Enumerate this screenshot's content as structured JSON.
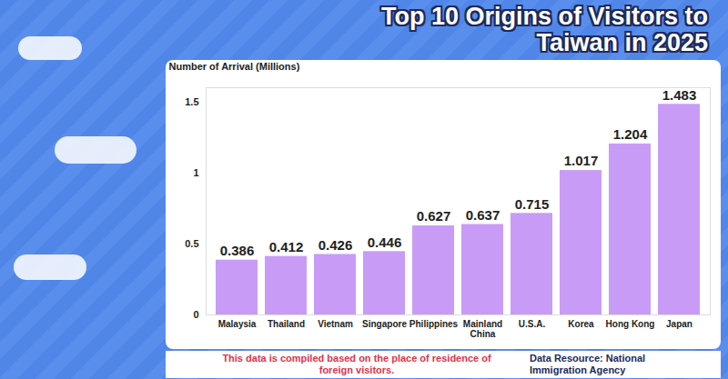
{
  "chart_data": {
    "type": "bar",
    "title": "Top 10 Origins of Visitors to Taiwan in 2025",
    "y_label": "Number of Arrival (Millions)",
    "categories": [
      "Malaysia",
      "Thailand",
      "Vietnam",
      "Singapore",
      "Philippines",
      "Mainland China",
      "U.S.A.",
      "Korea",
      "Hong Kong",
      "Japan"
    ],
    "values": [
      0.386,
      0.412,
      0.426,
      0.446,
      0.627,
      0.637,
      0.715,
      1.017,
      1.204,
      1.483
    ],
    "color": "#c89cf6",
    "ylim": [
      0,
      1.6
    ],
    "yticks": [
      0,
      0.5,
      1,
      1.5
    ],
    "grid": false,
    "data_labels": true,
    "note": "This data is compiled based on the place of residence of foreign visitors.",
    "source": "Data Resource: National Immigration Agency"
  }
}
